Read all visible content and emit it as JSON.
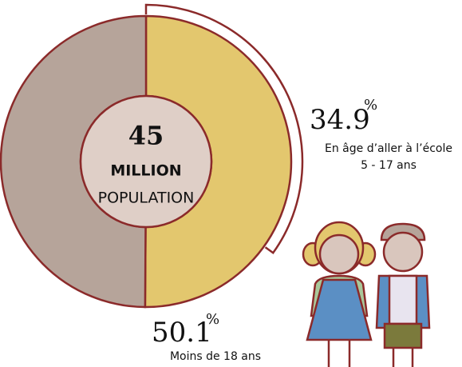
{
  "chart_data": {
    "type": "donut",
    "center_text": [
      "45",
      "MILLION",
      "POPULATION"
    ],
    "categories": [
      "Moins de 18 ans",
      null
    ],
    "values": [
      50.1,
      49.9
    ],
    "value_labels": [
      "50.1",
      null
    ],
    "colors": [
      "#e3c76e",
      "#b6a49a"
    ],
    "unit": "%",
    "arc": {
      "value": 34.9,
      "label": "34.9",
      "lines": [
        "En âge d’aller à l’école",
        "5 - 17 ans"
      ]
    }
  }
}
